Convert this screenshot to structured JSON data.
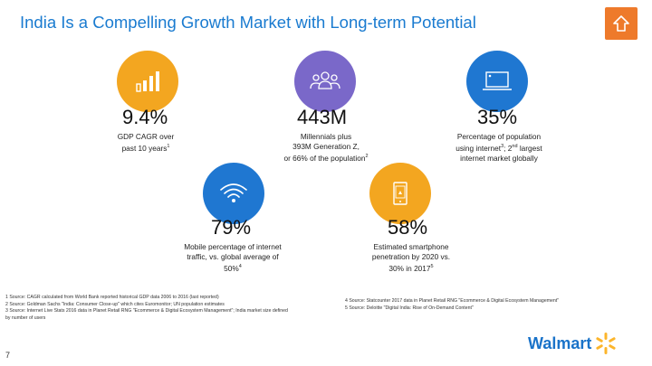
{
  "header": {
    "title": "India Is a Compelling Growth Market with Long-term Potential"
  },
  "icons": {
    "home": "home-arrow-icon",
    "growth": "bar-chart-icon",
    "millennials": "people-group-icon",
    "internet": "laptop-icon",
    "mobile": "wifi-icon",
    "smartphone": "smartphone-icon"
  },
  "stats": {
    "gdp": {
      "value": "9.4%",
      "line1": "GDP CAGR over",
      "line2": "past 10 years",
      "sup": "1"
    },
    "millennials": {
      "value": "443M",
      "line1": "Millennials plus",
      "line2": "393M Generation Z,",
      "line3": "or 66% of the population",
      "sup": "2"
    },
    "internet": {
      "value": "35%",
      "line1": "Percentage of population",
      "line2a": "using internet",
      "sup": "3",
      "line2b": "; 2",
      "nd": "nd",
      "line2c": " largest",
      "line3": "internet market globally"
    },
    "mobile": {
      "value": "79%",
      "line1": "Mobile percentage of internet",
      "line2": "traffic, vs. global average of",
      "line3": "50%",
      "sup": "4"
    },
    "smartphone": {
      "value": "58%",
      "line1": "Estimated smartphone",
      "line2": "penetration by 2020 vs.",
      "line3": "30% in 2017",
      "sup": "5"
    }
  },
  "footnotes": {
    "left": [
      "1 Source: CAGR calculated from World Bank reported historical GDP data 2006 to 2016 (last reported)",
      "2 Source: Goldman Sachs \"India: Consumer Close-up\" which cites Euromonitor; UN population estimates",
      "3 Source: Internet Live Stats 2016 data in Planet Retail RNG \"Ecommerce & Digital Ecosystem Management\"; India market size defined",
      "by number of users"
    ],
    "right": [
      "4 Source: Statcounter 2017 data in Planet Retail RNG \"Ecommerce & Digital Ecosystem Management\"",
      "5 Source: Deloitte \"Digital India: Rise of On-Demand Content\""
    ]
  },
  "footer": {
    "page_number": "7",
    "brand": "Walmart"
  },
  "colors": {
    "title": "#1a7bd0",
    "orange": "#f3a620",
    "purple": "#7a68c9",
    "blue": "#1f77d1",
    "home": "#ee7a2b",
    "brand": "#1a73c9",
    "spark": "#fcb52b"
  }
}
